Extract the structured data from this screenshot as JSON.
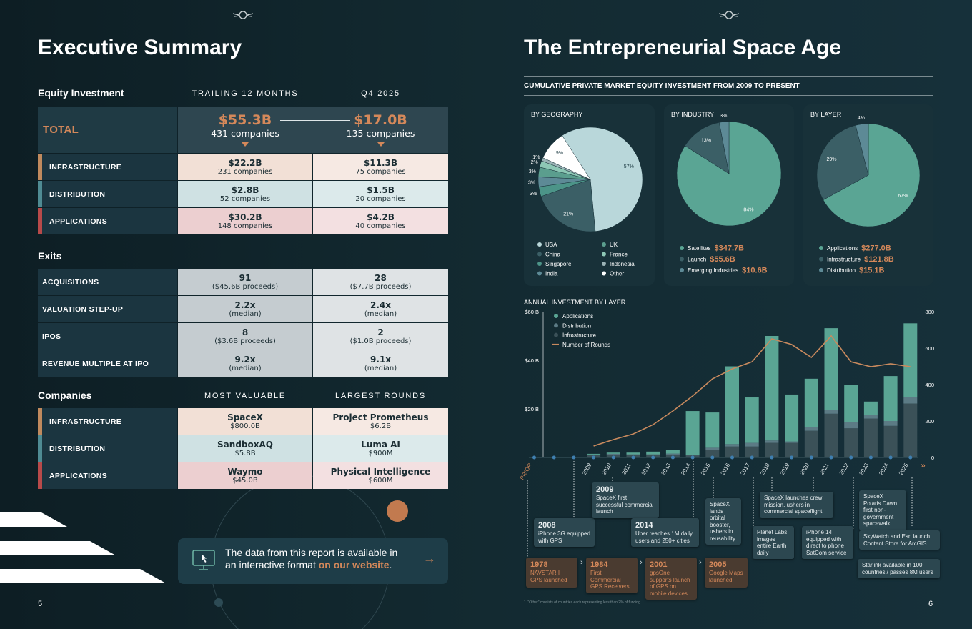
{
  "left": {
    "title": "Executive Summary",
    "page_number": "5",
    "equity": {
      "heading": "Equity Investment",
      "columns": [
        "TRAILING 12 MONTHS",
        "Q4 2025"
      ],
      "total": {
        "label": "TOTAL",
        "cells": [
          {
            "value": "$55.3B",
            "sub": "431 companies"
          },
          {
            "value": "$17.0B",
            "sub": "135 companies"
          }
        ]
      },
      "rows": [
        {
          "label": "INFRASTRUCTURE",
          "cells": [
            {
              "value": "$22.2B",
              "sub": "231 companies"
            },
            {
              "value": "$11.3B",
              "sub": "75 companies"
            }
          ]
        },
        {
          "label": "DISTRIBUTION",
          "cells": [
            {
              "value": "$2.8B",
              "sub": "52 companies"
            },
            {
              "value": "$1.5B",
              "sub": "20 companies"
            }
          ]
        },
        {
          "label": "APPLICATIONS",
          "cells": [
            {
              "value": "$30.2B",
              "sub": "148 companies"
            },
            {
              "value": "$4.2B",
              "sub": "40 companies"
            }
          ]
        }
      ]
    },
    "exits": {
      "heading": "Exits",
      "rows": [
        {
          "label": "ACQUISITIONS",
          "cells": [
            {
              "value": "91",
              "sub": "($45.6B proceeds)"
            },
            {
              "value": "28",
              "sub": "($7.7B proceeds)"
            }
          ]
        },
        {
          "label": "VALUATION STEP-UP",
          "cells": [
            {
              "value": "2.2x",
              "sub": "(median)"
            },
            {
              "value": "2.4x",
              "sub": "(median)"
            }
          ]
        },
        {
          "label": "IPOS",
          "cells": [
            {
              "value": "8",
              "sub": "($3.6B proceeds)"
            },
            {
              "value": "2",
              "sub": "($1.0B proceeds)"
            }
          ]
        },
        {
          "label": "REVENUE MULTIPLE AT IPO",
          "cells": [
            {
              "value": "9.2x",
              "sub": "(median)"
            },
            {
              "value": "9.1x",
              "sub": "(median)"
            }
          ]
        }
      ]
    },
    "companies": {
      "heading": "Companies",
      "columns": [
        "MOST VALUABLE",
        "LARGEST ROUNDS"
      ],
      "rows": [
        {
          "label": "INFRASTRUCTURE",
          "cells": [
            {
              "value": "SpaceX",
              "sub": "$800.0B"
            },
            {
              "value": "Project Prometheus",
              "sub": "$6.2B"
            }
          ]
        },
        {
          "label": "DISTRIBUTION",
          "cells": [
            {
              "value": "SandboxAQ",
              "sub": "$5.8B"
            },
            {
              "value": "Luma AI",
              "sub": "$900M"
            }
          ]
        },
        {
          "label": "APPLICATIONS",
          "cells": [
            {
              "value": "Waymo",
              "sub": "$45.0B"
            },
            {
              "value": "Physical Intelligence",
              "sub": "$600M"
            }
          ]
        }
      ]
    },
    "callout": {
      "text": "The data from this report is available in an interactive format",
      "link": "on our website",
      "end": "."
    }
  },
  "right": {
    "title": "The Entrepreneurial Space Age",
    "page_number": "6",
    "subtitle": "CUMULATIVE PRIVATE MARKET EQUITY INVESTMENT FROM 2009 TO PRESENT",
    "footnote": "1. “Other” consists of countries each representing less than 2% of funding.",
    "milestones": [
      {
        "year": "2008",
        "text": "iPhone 3G equipped with GPS"
      },
      {
        "year": "2009",
        "text": "SpaceX first successful commercial launch"
      },
      {
        "year": "2014",
        "text": "Uber reaches 1M daily users and 250+ cities"
      },
      {
        "text": "SpaceX lands orbital booster, ushers in reusability"
      },
      {
        "text": "SpaceX launches crew mission, ushers in commercial spaceflight"
      },
      {
        "text": "Planet Labs images entire Earth daily"
      },
      {
        "text": "iPhone 14 equipped with direct to phone SatCom service"
      },
      {
        "text": "SpaceX Polaris Dawn first non-government spacewalk"
      },
      {
        "text": "SkyWatch and Esri launch Content Store for ArcGIS"
      },
      {
        "text": "Starlink available in 100 countries / passes 8M users"
      }
    ],
    "history": [
      {
        "year": "1978",
        "text": "NAVSTAR I GPS launched"
      },
      {
        "year": "1984",
        "text": "First Commercial GPS Receivers"
      },
      {
        "year": "2001",
        "text": "gpsOne supports launch of GPS on mobile devices"
      },
      {
        "year": "2005",
        "text": "Google Maps launched"
      }
    ]
  },
  "chart_data": [
    {
      "type": "pie",
      "title": "BY GEOGRAPHY",
      "categories": [
        "USA",
        "China",
        "Singapore",
        "India",
        "UK",
        "France",
        "Indonesia",
        "Other¹"
      ],
      "values": [
        57,
        21,
        3,
        3,
        3,
        2,
        1,
        9
      ],
      "value_labels": [
        "57%",
        "21%",
        "3%",
        "3%",
        "3%",
        "2%",
        "1%",
        "9%"
      ],
      "colors": [
        "#b9d7da",
        "#3b5f66",
        "#4c9488",
        "#5d8a96",
        "#5b9e8e",
        "#8dc7b5",
        "#9bb3b6",
        "#ffffff"
      ]
    },
    {
      "type": "pie",
      "title": "BY INDUSTRY",
      "categories": [
        "Satellites",
        "Launch",
        "Emerging Industries"
      ],
      "values": [
        84,
        13,
        3
      ],
      "value_labels": [
        "84%",
        "13%",
        "3%"
      ],
      "amounts": [
        "$347.7B",
        "$55.6B",
        "$10.6B"
      ],
      "colors": [
        "#5aa594",
        "#3b5f66",
        "#5d8a96"
      ]
    },
    {
      "type": "pie",
      "title": "BY LAYER",
      "categories": [
        "Applications",
        "Infrastructure",
        "Distribution"
      ],
      "values": [
        67,
        29,
        4
      ],
      "value_labels": [
        "67%",
        "29%",
        "4%"
      ],
      "amounts": [
        "$277.0B",
        "$121.8B",
        "$15.1B"
      ],
      "colors": [
        "#5aa594",
        "#3b5f66",
        "#5d8a96"
      ]
    },
    {
      "type": "bar",
      "title": "ANNUAL INVESTMENT BY LAYER",
      "stacked": true,
      "categories": [
        "PRIOR",
        null,
        null,
        "2009",
        "2010",
        "2011",
        "2012",
        "2013",
        "2014",
        "2015",
        "2016",
        "2017",
        "2018",
        "2019",
        "2020",
        "2021",
        "2022",
        "2023",
        "2024",
        "2025"
      ],
      "series": [
        {
          "name": "Applications",
          "color": "#5aa594",
          "values": [
            0,
            0,
            0,
            0.3,
            0.5,
            0.7,
            1.1,
            1.4,
            18,
            14.5,
            32,
            18.7,
            43,
            19.3,
            19.9,
            33.7,
            15.5,
            5.5,
            18.5,
            30.2
          ]
        },
        {
          "name": "Distribution",
          "color": "#5c7b85",
          "values": [
            0,
            0,
            0,
            0.2,
            0.3,
            0.3,
            0.3,
            0.4,
            0.3,
            1,
            1,
            1.5,
            1,
            0.6,
            1.5,
            1.5,
            2.5,
            1.5,
            2,
            2.8
          ]
        },
        {
          "name": "Infrastructure",
          "color": "#3b5158",
          "values": [
            0,
            0,
            0,
            1,
            1.2,
            1,
            1,
            1.2,
            0.8,
            3,
            4.5,
            4.5,
            6,
            6,
            11,
            18,
            12,
            16,
            13,
            22.2
          ]
        },
        {
          "name": "Number of Rounds",
          "type": "line",
          "axis": "y2",
          "color": "#c98a5e",
          "values": [
            null,
            null,
            null,
            63,
            98,
            129,
            180,
            255,
            337,
            431,
            486,
            525,
            651,
            620,
            549,
            667,
            525,
            498,
            514,
            498
          ]
        }
      ],
      "ylim": [
        0,
        60
      ],
      "yticks": [
        {
          "value": 20,
          "label": "$20 B"
        },
        {
          "value": 40,
          "label": "$40 B"
        },
        {
          "value": 60,
          "label": "$60 B"
        }
      ],
      "y2lim": [
        0,
        800
      ],
      "y2ticks": [
        0,
        200,
        400,
        600,
        800
      ]
    }
  ]
}
